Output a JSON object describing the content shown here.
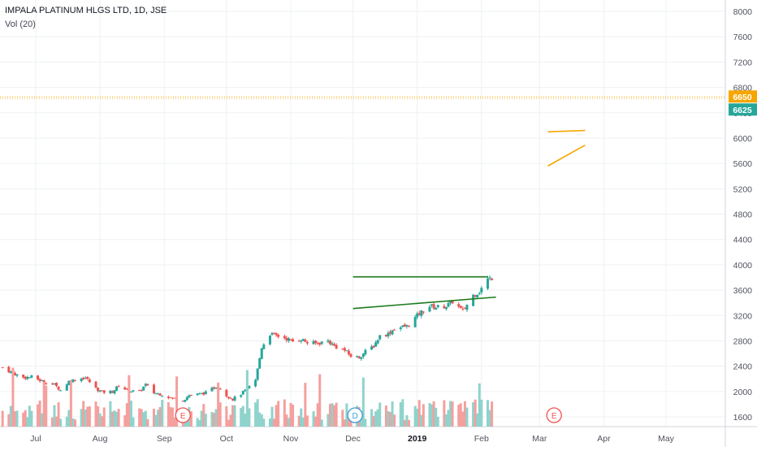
{
  "header": {
    "title": "IMPALA PLATINUM HLGS LTD, 1D, JSE",
    "volume_label": "Vol (20)"
  },
  "colors": {
    "up": "#26a69a",
    "down": "#ef5350",
    "vol_up": "#8fd3cc",
    "vol_down": "#f4a09e",
    "grid": "#eef0f3",
    "axis_text": "#50535e",
    "price_line": "#f7a600",
    "triangle_line": "#f7a600",
    "channel_line": "#1b7a1b",
    "last_price_bg": "#26a69a"
  },
  "chart_data": {
    "type": "candlestick",
    "title": "IMPALA PLATINUM HLGS LTD, 1D, JSE",
    "ylim": [
      1450,
      8200
    ],
    "y_ticks": [
      1600,
      2000,
      2400,
      2800,
      3200,
      3600,
      4000,
      4400,
      4800,
      5200,
      5600,
      6000,
      6400,
      6800,
      7200,
      7600,
      8000
    ],
    "x_tick_labels": [
      "Jul",
      "Aug",
      "Sep",
      "Oct",
      "Nov",
      "Dec",
      "2019",
      "Feb",
      "Mar",
      "Apr",
      "May"
    ],
    "x_tick_dates": [
      "2018-07-01",
      "2018-08-01",
      "2018-09-01",
      "2018-10-01",
      "2018-11-01",
      "2018-12-01",
      "2019-01-01",
      "2019-02-01",
      "2019-03-01",
      "2019-04-01",
      "2019-05-01"
    ],
    "x_range": [
      "2018-06-15",
      "2019-06-10"
    ],
    "price_labels": {
      "upper": 6650,
      "lower": 6625
    },
    "grid": true,
    "price_series": [
      [
        "2018-06-15",
        2380
      ],
      [
        "2018-06-20",
        2290
      ],
      [
        "2018-06-25",
        2220
      ],
      [
        "2018-06-29",
        2230
      ],
      [
        "2018-07-05",
        2150
      ],
      [
        "2018-07-10",
        2110
      ],
      [
        "2018-07-13",
        2020
      ],
      [
        "2018-07-17",
        2160
      ],
      [
        "2018-07-20",
        2190
      ],
      [
        "2018-07-25",
        2220
      ],
      [
        "2018-07-30",
        2050
      ],
      [
        "2018-08-02",
        1990
      ],
      [
        "2018-08-07",
        2000
      ],
      [
        "2018-08-10",
        2090
      ],
      [
        "2018-08-15",
        2010
      ],
      [
        "2018-08-20",
        2000
      ],
      [
        "2018-08-23",
        2110
      ],
      [
        "2018-08-27",
        1980
      ],
      [
        "2018-08-31",
        1950
      ],
      [
        "2018-09-05",
        1890
      ],
      [
        "2018-09-10",
        1860
      ],
      [
        "2018-09-13",
        1940
      ],
      [
        "2018-09-18",
        1960
      ],
      [
        "2018-09-21",
        1980
      ],
      [
        "2018-09-26",
        2080
      ],
      [
        "2018-09-28",
        2050
      ],
      [
        "2018-10-01",
        1940
      ],
      [
        "2018-10-04",
        1880
      ],
      [
        "2018-10-08",
        1960
      ],
      [
        "2018-10-11",
        2040
      ],
      [
        "2018-10-15",
        2180
      ],
      [
        "2018-10-18",
        2700
      ],
      [
        "2018-10-22",
        2910
      ],
      [
        "2018-10-25",
        2880
      ],
      [
        "2018-10-29",
        2850
      ],
      [
        "2018-11-02",
        2790
      ],
      [
        "2018-11-06",
        2830
      ],
      [
        "2018-11-09",
        2770
      ],
      [
        "2018-11-14",
        2760
      ],
      [
        "2018-11-19",
        2800
      ],
      [
        "2018-11-22",
        2720
      ],
      [
        "2018-11-27",
        2650
      ],
      [
        "2018-11-30",
        2560
      ],
      [
        "2018-12-04",
        2540
      ],
      [
        "2018-12-07",
        2630
      ],
      [
        "2018-12-11",
        2720
      ],
      [
        "2018-12-14",
        2880
      ],
      [
        "2018-12-18",
        2910
      ],
      [
        "2018-12-21",
        3000
      ],
      [
        "2018-12-27",
        3030
      ],
      [
        "2019-01-02",
        3230
      ],
      [
        "2019-01-07",
        3350
      ],
      [
        "2019-01-10",
        3330
      ],
      [
        "2019-01-15",
        3350
      ],
      [
        "2019-01-18",
        3420
      ],
      [
        "2019-01-23",
        3270
      ],
      [
        "2019-01-28",
        3520
      ],
      [
        "2019-01-31",
        3580
      ],
      [
        "2019-02-04",
        3770
      ],
      [
        "2019-02-07",
        3810
      ]
    ],
    "price_series_note_free": true,
    "annotations": [
      {
        "type": "line",
        "name": "channel-top",
        "from": [
          "2018-12-01",
          3810
        ],
        "to": [
          "2019-02-04",
          3810
        ]
      },
      {
        "type": "line",
        "name": "channel-bottom",
        "from": [
          "2018-12-01",
          3310
        ],
        "to": [
          "2019-02-08",
          3490
        ]
      },
      {
        "type": "line",
        "name": "triangle-top",
        "from": [
          "2019-03-05",
          6100
        ],
        "to": [
          "2019-03-23",
          6120
        ]
      },
      {
        "type": "line",
        "name": "triangle-bottom",
        "from": [
          "2019-03-05",
          5560
        ],
        "to": [
          "2019-03-23",
          5890
        ]
      }
    ],
    "event_markers": [
      {
        "label": "E",
        "date": "2018-09-10"
      },
      {
        "label": "D",
        "date": "2018-12-02"
      },
      {
        "label": "E",
        "date": "2019-03-08"
      }
    ]
  }
}
